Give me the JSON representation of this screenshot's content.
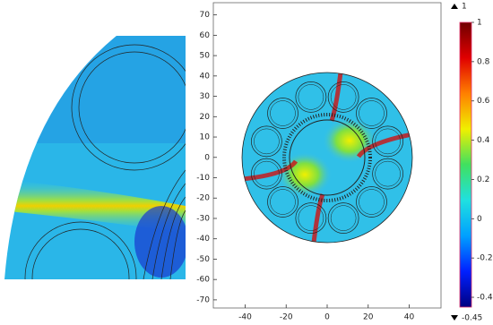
{
  "chart_data": {
    "type": "field",
    "xlim": [
      -55.5,
      55.5
    ],
    "ylim": [
      -74,
      76
    ],
    "xticks": [
      -40,
      -20,
      0,
      20,
      40
    ],
    "yticks": [
      -70,
      -60,
      -50,
      -40,
      -30,
      -20,
      -10,
      0,
      10,
      20,
      30,
      40,
      50,
      60,
      70
    ],
    "colorbar": {
      "min": -0.45,
      "max": 1,
      "ticks": [
        -0.4,
        -0.2,
        0,
        0.2,
        0.4,
        0.6,
        0.8,
        1
      ],
      "colors": [
        "#000080",
        "#0020ff",
        "#00a0ff",
        "#20e0e0",
        "#40e060",
        "#f0f000",
        "#ff8000",
        "#e00000",
        "#700000"
      ]
    }
  }
}
